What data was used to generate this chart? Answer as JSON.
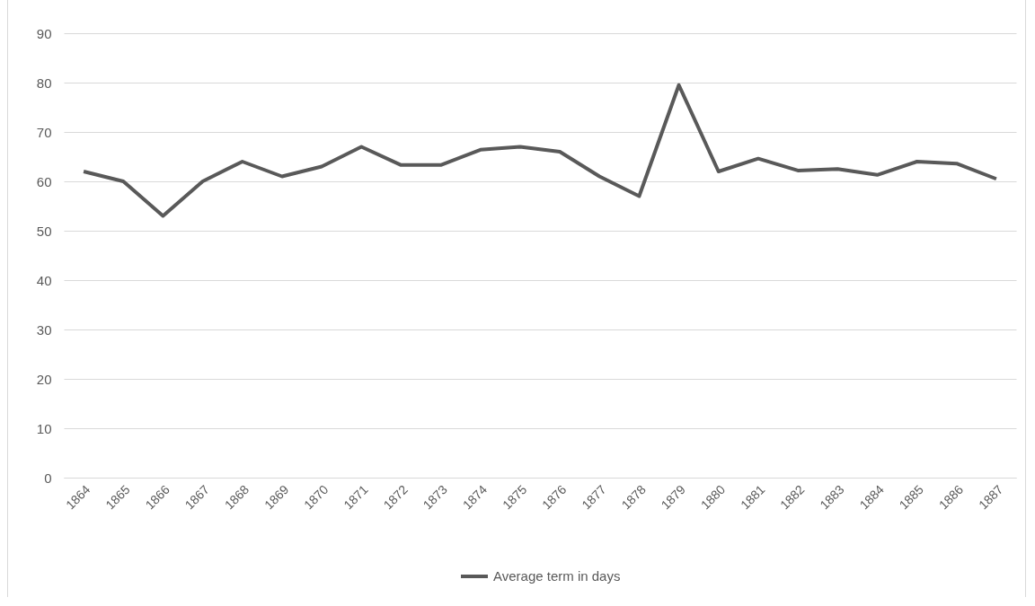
{
  "chart_data": {
    "type": "line",
    "categories": [
      "1864",
      "1865",
      "1866",
      "1867",
      "1868",
      "1869",
      "1870",
      "1871",
      "1872",
      "1873",
      "1874",
      "1875",
      "1876",
      "1877",
      "1878",
      "1879",
      "1880",
      "1881",
      "1882",
      "1883",
      "1884",
      "1885",
      "1886",
      "1887"
    ],
    "series": [
      {
        "name": "Average term in days",
        "color": "#595959",
        "values": [
          62,
          60,
          53,
          60,
          64,
          61,
          63,
          67,
          63.3,
          63.3,
          66.4,
          67,
          66,
          61,
          57,
          79.5,
          62,
          64.6,
          62.2,
          62.5,
          61.3,
          64,
          63.6,
          60.5
        ]
      }
    ],
    "ylim": [
      0,
      90
    ],
    "yticks": [
      0,
      10,
      20,
      30,
      40,
      50,
      60,
      70,
      80,
      90
    ],
    "grid": "y",
    "legend": "bottom",
    "marker": "none",
    "line_style": "solid"
  }
}
